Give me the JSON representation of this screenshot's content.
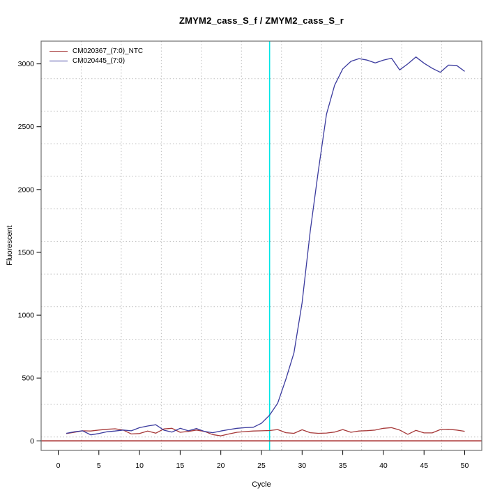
{
  "chart_data": {
    "type": "line",
    "title": "ZMYM2_cass_S_f / ZMYM2_cass_S_r",
    "xlabel": "Cycle",
    "ylabel": "Fluorescent",
    "x": [
      1,
      2,
      3,
      4,
      5,
      6,
      7,
      8,
      9,
      10,
      11,
      12,
      13,
      14,
      15,
      16,
      17,
      18,
      19,
      20,
      21,
      22,
      23,
      24,
      25,
      26,
      27,
      28,
      29,
      30,
      31,
      32,
      33,
      34,
      35,
      36,
      37,
      38,
      39,
      40,
      41,
      42,
      43,
      44,
      45,
      46,
      47,
      48,
      49,
      50
    ],
    "series": [
      {
        "name": "CM020367_(7:0)_NTC",
        "color": "#A63838",
        "values": [
          58,
          68,
          80,
          78,
          86,
          92,
          96,
          86,
          55,
          58,
          78,
          61,
          95,
          100,
          68,
          75,
          86,
          75,
          50,
          40,
          55,
          68,
          74,
          78,
          80,
          82,
          90,
          65,
          60,
          88,
          65,
          60,
          62,
          70,
          90,
          68,
          78,
          81,
          86,
          100,
          105,
          86,
          52,
          83,
          63,
          63,
          90,
          92,
          86,
          76
        ]
      },
      {
        "name": "CM020445_(7:0)",
        "color": "#3B3B9E",
        "values": [
          60,
          72,
          80,
          48,
          58,
          72,
          78,
          86,
          80,
          105,
          118,
          128,
          85,
          70,
          100,
          80,
          98,
          75,
          65,
          78,
          90,
          100,
          105,
          108,
          140,
          205,
          300,
          490,
          700,
          1100,
          1670,
          2150,
          2600,
          2830,
          2960,
          3020,
          3042,
          3030,
          3008,
          3030,
          3045,
          2952,
          3000,
          3055,
          3005,
          2965,
          2933,
          2990,
          2988,
          2940
        ]
      }
    ],
    "x_ticks": [
      0,
      5,
      10,
      15,
      20,
      25,
      30,
      35,
      40,
      45,
      50
    ],
    "y_ticks": [
      0,
      500,
      1000,
      1500,
      2000,
      2500,
      3000
    ],
    "xlim": [
      -2.1,
      52.1
    ],
    "ylim": [
      -76,
      3181
    ],
    "grid": "dotted",
    "legend_position": "top-left",
    "annotations": {
      "threshold_cycle_line": {
        "x": 26,
        "color": "#00E6E6"
      },
      "zero_baseline": {
        "y": 0,
        "color": "#B04040"
      }
    }
  },
  "style_colors": {
    "grid": "#BEBEBE",
    "box_border": "#6E6E6E",
    "text": "#000000"
  }
}
